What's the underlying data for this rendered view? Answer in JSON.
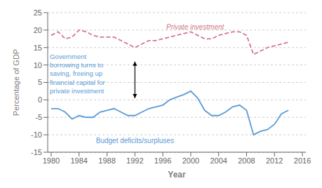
{
  "chart_data": {
    "type": "line",
    "x_label": "Year",
    "y_label": "Percentage of GDP",
    "xlim": [
      1979.5,
      2016.5
    ],
    "ylim": [
      -15,
      25
    ],
    "xticks": [
      1980,
      1984,
      1988,
      1992,
      1996,
      2000,
      2004,
      2008,
      2012,
      2016
    ],
    "yticks": [
      -15,
      -10,
      -5,
      0,
      5,
      10,
      15,
      20,
      25
    ],
    "grid": true,
    "x": [
      1980,
      1981,
      1982,
      1983,
      1984,
      1985,
      1986,
      1987,
      1988,
      1989,
      1990,
      1991,
      1992,
      1993,
      1994,
      1995,
      1996,
      1997,
      1998,
      1999,
      2000,
      2001,
      2002,
      2003,
      2004,
      2005,
      2006,
      2007,
      2008,
      2009,
      2010,
      2011,
      2012,
      2013,
      2014
    ],
    "series": [
      {
        "name": "Private investment",
        "color": "#d4788a",
        "line_style": "dashed",
        "label_at": [
          1996.5,
          20.8
        ],
        "values": [
          18.5,
          19.5,
          17.5,
          18.0,
          20.0,
          19.5,
          18.5,
          18.0,
          18.0,
          18.0,
          17.0,
          16.0,
          15.0,
          16.0,
          17.0,
          17.0,
          17.5,
          18.0,
          18.5,
          19.0,
          19.5,
          18.5,
          17.5,
          17.5,
          18.5,
          19.0,
          19.5,
          19.5,
          18.5,
          13.0,
          14.0,
          15.0,
          15.5,
          16.0,
          16.5
        ]
      },
      {
        "name": "Budget deficits/surpluses",
        "color": "#5b9bd5",
        "line_style": "solid",
        "label_at": [
          1992,
          -10.5
        ],
        "values": [
          -2.5,
          -2.5,
          -3.5,
          -5.5,
          -4.5,
          -5.0,
          -5.0,
          -3.5,
          -3.0,
          -2.5,
          -3.5,
          -4.5,
          -4.5,
          -3.5,
          -2.5,
          -2.0,
          -1.5,
          0.0,
          0.8,
          1.5,
          2.5,
          0.5,
          -3.0,
          -4.5,
          -4.5,
          -3.5,
          -2.0,
          -1.5,
          -3.0,
          -10.0,
          -9.0,
          -8.5,
          -7.0,
          -4.0,
          -3.0
        ]
      }
    ],
    "annotations": [
      {
        "text": "Government\nborrowing turns to\nsaving, freeing up\nfinancial capital for\nprivate investment",
        "x": 1979.8,
        "y": 13.5,
        "color": "#5b9bd5"
      }
    ],
    "arrow": {
      "x": 1992.0,
      "y": [
        0.5,
        11.0
      ]
    }
  }
}
